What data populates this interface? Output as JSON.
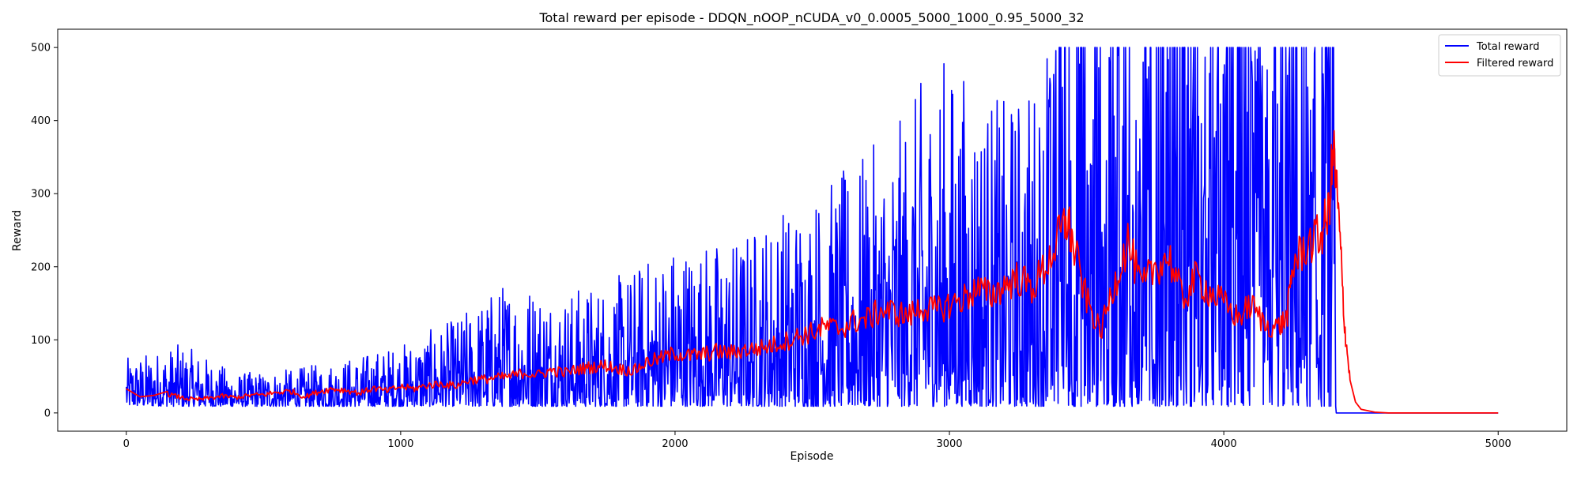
{
  "chart_data": {
    "type": "line",
    "title": "Total reward per episode - DDQN_nOOP_nCUDA_v0_0.0005_5000_1000_0.95_5000_32",
    "xlabel": "Episode",
    "ylabel": "Reward",
    "xlim": [
      -250,
      5250
    ],
    "ylim": [
      -25,
      525
    ],
    "xticks": [
      0,
      1000,
      2000,
      3000,
      4000,
      5000
    ],
    "yticks": [
      0,
      100,
      200,
      300,
      400,
      500
    ],
    "grid": false,
    "legend_position": "top-right",
    "series": [
      {
        "name": "Total reward",
        "color": "#0000ff",
        "envelope": [
          {
            "x": 0,
            "low": 10,
            "high": 75
          },
          {
            "x": 200,
            "low": 9,
            "high": 95
          },
          {
            "x": 400,
            "low": 9,
            "high": 55
          },
          {
            "x": 600,
            "low": 9,
            "high": 60
          },
          {
            "x": 800,
            "low": 9,
            "high": 75
          },
          {
            "x": 1000,
            "low": 9,
            "high": 95
          },
          {
            "x": 1200,
            "low": 9,
            "high": 130
          },
          {
            "x": 1400,
            "low": 9,
            "high": 190
          },
          {
            "x": 1600,
            "low": 9,
            "high": 170
          },
          {
            "x": 1800,
            "low": 9,
            "high": 190
          },
          {
            "x": 2000,
            "low": 9,
            "high": 240
          },
          {
            "x": 2200,
            "low": 9,
            "high": 240
          },
          {
            "x": 2400,
            "low": 9,
            "high": 290
          },
          {
            "x": 2600,
            "low": 9,
            "high": 330
          },
          {
            "x": 2800,
            "low": 9,
            "high": 390
          },
          {
            "x": 2960,
            "low": 9,
            "high": 500
          },
          {
            "x": 3200,
            "low": 9,
            "high": 430
          },
          {
            "x": 3400,
            "low": 9,
            "high": 500
          },
          {
            "x": 3600,
            "low": 9,
            "high": 500
          },
          {
            "x": 3800,
            "low": 9,
            "high": 500
          },
          {
            "x": 4000,
            "low": 9,
            "high": 500
          },
          {
            "x": 4200,
            "low": 9,
            "high": 500
          },
          {
            "x": 4400,
            "low": 9,
            "high": 500
          }
        ],
        "drop_to_zero_at": 4410,
        "end_x": 5000
      },
      {
        "name": "Filtered reward",
        "color": "#ff0000",
        "points": [
          [
            0,
            33
          ],
          [
            50,
            22
          ],
          [
            100,
            24
          ],
          [
            150,
            26
          ],
          [
            200,
            21
          ],
          [
            250,
            18
          ],
          [
            300,
            20
          ],
          [
            350,
            23
          ],
          [
            400,
            21
          ],
          [
            450,
            24
          ],
          [
            500,
            25
          ],
          [
            550,
            28
          ],
          [
            600,
            30
          ],
          [
            650,
            22
          ],
          [
            700,
            29
          ],
          [
            750,
            33
          ],
          [
            800,
            31
          ],
          [
            850,
            27
          ],
          [
            900,
            34
          ],
          [
            950,
            30
          ],
          [
            1000,
            36
          ],
          [
            1050,
            33
          ],
          [
            1100,
            38
          ],
          [
            1150,
            40
          ],
          [
            1200,
            37
          ],
          [
            1250,
            45
          ],
          [
            1300,
            46
          ],
          [
            1350,
            48
          ],
          [
            1400,
            50
          ],
          [
            1450,
            55
          ],
          [
            1500,
            52
          ],
          [
            1550,
            58
          ],
          [
            1600,
            55
          ],
          [
            1650,
            60
          ],
          [
            1700,
            63
          ],
          [
            1750,
            65
          ],
          [
            1800,
            60
          ],
          [
            1850,
            58
          ],
          [
            1900,
            70
          ],
          [
            1950,
            75
          ],
          [
            2000,
            82
          ],
          [
            2050,
            78
          ],
          [
            2100,
            80
          ],
          [
            2150,
            84
          ],
          [
            2200,
            82
          ],
          [
            2250,
            86
          ],
          [
            2300,
            88
          ],
          [
            2350,
            92
          ],
          [
            2400,
            98
          ],
          [
            2450,
            105
          ],
          [
            2500,
            110
          ],
          [
            2550,
            118
          ],
          [
            2600,
            115
          ],
          [
            2650,
            125
          ],
          [
            2700,
            128
          ],
          [
            2750,
            140
          ],
          [
            2800,
            138
          ],
          [
            2850,
            132
          ],
          [
            2900,
            145
          ],
          [
            2950,
            140
          ],
          [
            3000,
            148
          ],
          [
            3050,
            156
          ],
          [
            3100,
            170
          ],
          [
            3150,
            160
          ],
          [
            3200,
            175
          ],
          [
            3250,
            185
          ],
          [
            3300,
            170
          ],
          [
            3350,
            200
          ],
          [
            3400,
            240
          ],
          [
            3430,
            265
          ],
          [
            3450,
            230
          ],
          [
            3500,
            155
          ],
          [
            3550,
            110
          ],
          [
            3600,
            175
          ],
          [
            3650,
            235
          ],
          [
            3700,
            170
          ],
          [
            3750,
            200
          ],
          [
            3800,
            215
          ],
          [
            3850,
            155
          ],
          [
            3900,
            185
          ],
          [
            3950,
            165
          ],
          [
            4000,
            150
          ],
          [
            4050,
            130
          ],
          [
            4100,
            148
          ],
          [
            4150,
            120
          ],
          [
            4200,
            118
          ],
          [
            4230,
            130
          ],
          [
            4250,
            200
          ],
          [
            4300,
            230
          ],
          [
            4350,
            240
          ],
          [
            4380,
            270
          ],
          [
            4400,
            360
          ],
          [
            4420,
            260
          ],
          [
            4440,
            120
          ],
          [
            4460,
            45
          ],
          [
            4480,
            15
          ],
          [
            4500,
            5
          ],
          [
            4550,
            1
          ],
          [
            4600,
            0
          ],
          [
            5000,
            0
          ]
        ]
      }
    ]
  }
}
